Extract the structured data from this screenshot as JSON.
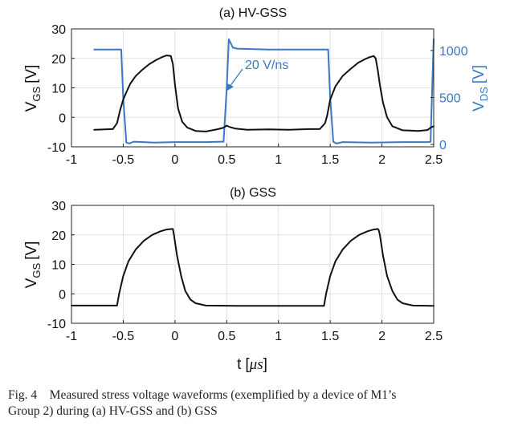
{
  "chart_data": [
    {
      "type": "line",
      "title": "(a) HV-GSS",
      "xlabel": "",
      "ylabel_main": "V",
      "ylabel_sub": "GS",
      "ylabel_unit": "[V]",
      "xlim": [
        -1,
        2.5
      ],
      "ylim": [
        -10,
        30
      ],
      "xticks": [
        "-1",
        "-0.5",
        "0",
        "0.5",
        "1",
        "1.5",
        "2",
        "2.5"
      ],
      "yticks": [
        "-10",
        "0",
        "10",
        "20",
        "30"
      ],
      "y2label_main": "V",
      "y2label_sub": "DS",
      "y2label_unit": "[V]",
      "y2lim": [
        -25,
        1230
      ],
      "y2ticks": [
        "0",
        "500",
        "1000"
      ],
      "annotation": "20 V/ns",
      "series": [
        {
          "name": "VGS",
          "axis": "left",
          "color": "#111111",
          "x": [
            -0.78,
            -0.6,
            -0.56,
            -0.53,
            -0.5,
            -0.47,
            -0.43,
            -0.38,
            -0.32,
            -0.25,
            -0.18,
            -0.12,
            -0.08,
            -0.04,
            -0.02,
            0.0,
            0.03,
            0.07,
            0.12,
            0.2,
            0.3,
            0.42,
            0.47,
            0.5,
            0.53,
            0.58,
            0.7,
            0.9,
            1.1,
            1.3,
            1.4,
            1.45,
            1.47,
            1.5,
            1.55,
            1.62,
            1.7,
            1.77,
            1.84,
            1.88,
            1.92,
            1.94,
            1.96,
            1.98,
            2.01,
            2.05,
            2.1,
            2.2,
            2.35,
            2.44,
            2.47,
            2.5
          ],
          "y": [
            -4.2,
            -4.0,
            -2.0,
            2.5,
            6.0,
            8.5,
            11.5,
            14.0,
            16.0,
            18.0,
            19.5,
            20.5,
            21.0,
            20.8,
            18.0,
            11.0,
            3.0,
            -1.5,
            -3.5,
            -4.6,
            -4.8,
            -4.0,
            -3.5,
            -2.8,
            -3.3,
            -3.8,
            -4.2,
            -4.1,
            -4.2,
            -4.0,
            -4.0,
            -2.0,
            0.5,
            6.0,
            10.5,
            14.0,
            16.5,
            18.5,
            19.8,
            20.4,
            20.8,
            20.0,
            16.0,
            11.0,
            5.0,
            0.0,
            -3.0,
            -4.4,
            -4.6,
            -4.3,
            -3.5,
            -3.0
          ]
        },
        {
          "name": "VDS",
          "axis": "right",
          "color": "#3b78c3",
          "x": [
            -0.78,
            -0.52,
            -0.5,
            -0.47,
            -0.44,
            -0.4,
            -0.2,
            0.0,
            0.3,
            0.45,
            0.47,
            0.5,
            0.52,
            0.56,
            0.6,
            0.9,
            1.2,
            1.46,
            1.48,
            1.5,
            1.53,
            1.56,
            1.62,
            1.9,
            2.2,
            2.45,
            2.47,
            2.5
          ],
          "y": [
            1010,
            1010,
            500,
            20,
            10,
            30,
            20,
            25,
            25,
            30,
            30,
            600,
            1120,
            1030,
            1020,
            1010,
            1010,
            1010,
            1010,
            500,
            30,
            10,
            25,
            20,
            25,
            25,
            30,
            1120
          ]
        }
      ]
    },
    {
      "type": "line",
      "title": "(b) GSS",
      "xlabel_main": "t",
      "xlabel_unit_open": "[",
      "xlabel_unit": "μs",
      "xlabel_unit_close": "]",
      "ylabel_main": "V",
      "ylabel_sub": "GS",
      "ylabel_unit": "[V]",
      "xlim": [
        -1,
        2.5
      ],
      "ylim": [
        -10,
        30
      ],
      "xticks": [
        "-1",
        "-0.5",
        "0",
        "0.5",
        "1",
        "1.5",
        "2",
        "2.5"
      ],
      "yticks": [
        "-10",
        "0",
        "10",
        "20",
        "30"
      ],
      "series": [
        {
          "name": "VGS",
          "color": "#111111",
          "x": [
            -1.0,
            -0.56,
            -0.54,
            -0.5,
            -0.45,
            -0.38,
            -0.3,
            -0.22,
            -0.14,
            -0.08,
            -0.03,
            -0.02,
            -0.01,
            0.02,
            0.06,
            0.1,
            0.15,
            0.2,
            0.3,
            0.6,
            1.0,
            1.44,
            1.46,
            1.5,
            1.55,
            1.62,
            1.7,
            1.78,
            1.86,
            1.92,
            1.96,
            1.97,
            1.98,
            2.01,
            2.05,
            2.1,
            2.15,
            2.2,
            2.3,
            2.5
          ],
          "y": [
            -4.0,
            -4.0,
            0.0,
            6.0,
            11.0,
            15.0,
            18.0,
            20.0,
            21.2,
            21.8,
            22.0,
            22.0,
            20.0,
            13.0,
            6.0,
            1.0,
            -2.0,
            -3.2,
            -4.0,
            -4.1,
            -4.1,
            -4.1,
            0.0,
            6.0,
            11.0,
            15.0,
            18.0,
            20.0,
            21.2,
            21.8,
            22.0,
            21.5,
            20.0,
            13.0,
            6.0,
            1.0,
            -2.0,
            -3.2,
            -4.0,
            -4.1
          ]
        }
      ]
    }
  ],
  "caption": {
    "line1": "Fig. 4    Measured stress voltage waveforms (exemplified by a device of M1’s",
    "line2": "Group 2) during (a) HV-GSS and (b) GSS"
  }
}
